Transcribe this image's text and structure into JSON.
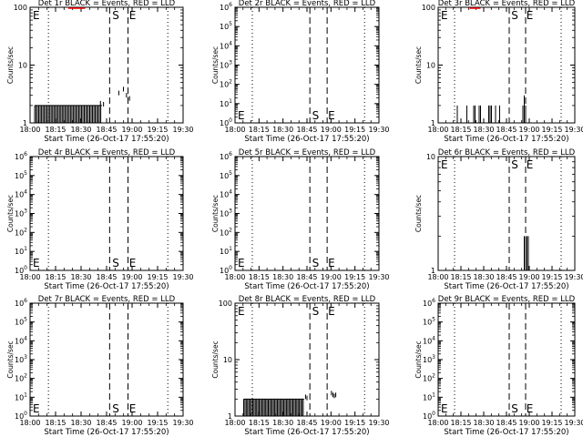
{
  "colors": {
    "events": "#000000",
    "lld": "#ff0000",
    "background": "#ffffff"
  },
  "common": {
    "xlabel": "Start Time (26-Oct-17 17:55:20)",
    "ylabel": "Counts/sec",
    "x_ticks": [
      "18:00",
      "18:15",
      "18:30",
      "18:45",
      "19:00",
      "19:15",
      "19:30"
    ],
    "marker_start": "S",
    "marker_end": "E",
    "title_suffix": " BLACK = Events, RED = LLD"
  },
  "chart_data": [
    {
      "type": "line",
      "title": "Det 1r BLACK = Events, RED = LLD",
      "detector": "1r",
      "yscale": "log",
      "ylim": [
        1,
        100
      ],
      "y_ticks": [
        "1",
        "10",
        "100"
      ],
      "xlim_min": [
        0,
        100
      ],
      "dotted_min": [
        12,
        90
      ],
      "dashed_min": [
        52,
        64
      ],
      "e_at": "left",
      "s_min": 56,
      "e_min": 67,
      "marker_row": "top",
      "events": {
        "from": 3,
        "to": 47,
        "base": 1,
        "high": 2,
        "extra": [
          [
            46,
            2.4
          ],
          [
            48,
            2.3
          ],
          [
            58,
            3.6
          ],
          [
            61,
            4.2
          ],
          [
            63,
            3.3
          ],
          [
            64,
            2.8
          ],
          [
            65,
            2.9
          ]
        ]
      },
      "lld": {
        "from": 25,
        "to": 36,
        "y": 100
      }
    },
    {
      "type": "line",
      "title": "Det 2r BLACK = Events, RED = LLD",
      "detector": "2r",
      "yscale": "log",
      "ylim": [
        1,
        1000000.0
      ],
      "y_ticks": [
        "10^0",
        "10^1",
        "10^2",
        "10^3",
        "10^4",
        "10^5",
        "10^6"
      ],
      "xlim_min": [
        0,
        100
      ],
      "dotted_min": [
        12,
        90
      ],
      "dashed_min": [
        52,
        64
      ],
      "e_at": "left",
      "s_min": 56,
      "e_min": 67,
      "marker_row": "bottom",
      "events": null,
      "lld": null
    },
    {
      "type": "line",
      "title": "Det 3r BLACK = Events, RED = LLD",
      "detector": "3r",
      "yscale": "log",
      "ylim": [
        1,
        100
      ],
      "y_ticks": [
        "1",
        "10",
        "100"
      ],
      "xlim_min": [
        0,
        100
      ],
      "dotted_min": [
        12,
        90
      ],
      "dashed_min": [
        52,
        64
      ],
      "e_at": "left",
      "s_min": 56,
      "e_min": 67,
      "marker_row": "top",
      "events": {
        "sparse": [
          [
            14,
            2
          ],
          [
            21,
            2
          ],
          [
            26,
            2
          ],
          [
            27,
            2
          ],
          [
            30,
            2
          ],
          [
            31,
            2
          ],
          [
            37,
            2
          ],
          [
            38,
            2
          ],
          [
            39,
            2
          ],
          [
            42,
            2
          ],
          [
            45,
            2
          ],
          [
            62,
            2
          ],
          [
            63,
            3
          ],
          [
            64,
            2
          ]
        ]
      },
      "lld": {
        "from": 23,
        "to": 31,
        "y": 100
      }
    },
    {
      "type": "line",
      "title": "Det 4r BLACK = Events, RED = LLD",
      "detector": "4r",
      "yscale": "log",
      "ylim": [
        1,
        1000000.0
      ],
      "y_ticks": [
        "10^0",
        "10^1",
        "10^2",
        "10^3",
        "10^4",
        "10^5",
        "10^6"
      ],
      "xlim_min": [
        0,
        100
      ],
      "dotted_min": [
        12,
        90
      ],
      "dashed_min": [
        52,
        64
      ],
      "e_at": "left",
      "s_min": 56,
      "e_min": 67,
      "marker_row": "bottom",
      "events": null,
      "lld": null
    },
    {
      "type": "line",
      "title": "Det 5r BLACK = Events, RED = LLD",
      "detector": "5r",
      "yscale": "log",
      "ylim": [
        1,
        1000000.0
      ],
      "y_ticks": [
        "10^0",
        "10^1",
        "10^2",
        "10^3",
        "10^4",
        "10^5",
        "10^6"
      ],
      "xlim_min": [
        0,
        100
      ],
      "dotted_min": [
        12,
        90
      ],
      "dashed_min": [
        52,
        64
      ],
      "e_at": "left",
      "s_min": 56,
      "e_min": 67,
      "marker_row": "bottom",
      "events": null,
      "lld": null
    },
    {
      "type": "line",
      "title": "Det 6r BLACK = Events, RED = LLD",
      "detector": "6r",
      "yscale": "log",
      "ylim": [
        1,
        10
      ],
      "y_ticks": [
        "1",
        "10"
      ],
      "xlim_min": [
        0,
        100
      ],
      "dotted_min": [
        12,
        90
      ],
      "dashed_min": [
        52,
        64
      ],
      "e_at": "left",
      "s_min": 56,
      "e_min": 67,
      "marker_row": "top",
      "events": {
        "sparse": [
          [
            63,
            2
          ],
          [
            64,
            2
          ],
          [
            65,
            2
          ],
          [
            66,
            2
          ]
        ]
      },
      "lld": null
    },
    {
      "type": "line",
      "title": "Det 7r BLACK = Events, RED = LLD",
      "detector": "7r",
      "yscale": "log",
      "ylim": [
        1,
        1000000.0
      ],
      "y_ticks": [
        "10^0",
        "10^1",
        "10^2",
        "10^3",
        "10^4",
        "10^5",
        "10^6"
      ],
      "xlim_min": [
        0,
        100
      ],
      "dotted_min": [
        12,
        90
      ],
      "dashed_min": [
        52,
        64
      ],
      "e_at": "left",
      "s_min": 56,
      "e_min": 67,
      "marker_row": "bottom",
      "events": null,
      "lld": null
    },
    {
      "type": "line",
      "title": "Det 8r BLACK = Events, RED = LLD",
      "detector": "8r",
      "yscale": "log",
      "ylim": [
        1,
        100
      ],
      "y_ticks": [
        "1",
        "10",
        "100"
      ],
      "xlim_min": [
        0,
        100
      ],
      "dotted_min": [
        12,
        90
      ],
      "dashed_min": [
        52,
        64
      ],
      "e_at": "left",
      "s_min": 56,
      "e_min": 67,
      "marker_row": "top",
      "events": {
        "from": 6,
        "to": 48,
        "base": 1,
        "high": 2,
        "extra": [
          [
            49,
            2.4
          ],
          [
            50,
            2.3
          ],
          [
            67,
            2.8
          ],
          [
            68,
            2.6
          ],
          [
            69,
            2.5
          ],
          [
            70,
            2.6
          ]
        ]
      },
      "lld": null
    },
    {
      "type": "line",
      "title": "Det 9r BLACK = Events, RED = LLD",
      "detector": "9r",
      "yscale": "log",
      "ylim": [
        1,
        1000000.0
      ],
      "y_ticks": [
        "10^0",
        "10^1",
        "10^2",
        "10^3",
        "10^4",
        "10^5",
        "10^6"
      ],
      "xlim_min": [
        0,
        100
      ],
      "dotted_min": [
        12,
        90
      ],
      "dashed_min": [
        52,
        64
      ],
      "e_at": "left",
      "s_min": 56,
      "e_min": 67,
      "marker_row": "bottom",
      "events": null,
      "lld": null
    }
  ]
}
